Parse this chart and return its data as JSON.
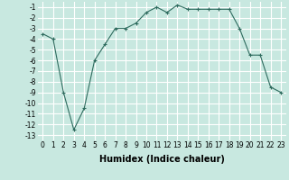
{
  "x": [
    0,
    1,
    2,
    3,
    4,
    5,
    6,
    7,
    8,
    9,
    10,
    11,
    12,
    13,
    14,
    15,
    16,
    17,
    18,
    19,
    20,
    21,
    22,
    23
  ],
  "y": [
    -3.5,
    -4.0,
    -9.0,
    -12.5,
    -10.5,
    -6.0,
    -4.5,
    -3.0,
    -3.0,
    -2.5,
    -1.5,
    -1.0,
    -1.5,
    -0.8,
    -1.2,
    -1.2,
    -1.2,
    -1.2,
    -1.2,
    -3.0,
    -5.5,
    -5.5,
    -8.5,
    -9.0
  ],
  "line_color": "#2e6b5e",
  "marker": "+",
  "marker_size": 3,
  "bg_color": "#c8e8e0",
  "grid_color": "#ffffff",
  "xlabel": "Humidex (Indice chaleur)",
  "xlim": [
    -0.5,
    23.5
  ],
  "ylim": [
    -13.5,
    -0.5
  ],
  "yticks": [
    -13,
    -12,
    -11,
    -10,
    -9,
    -8,
    -7,
    -6,
    -5,
    -4,
    -3,
    -2,
    -1
  ],
  "xticks": [
    0,
    1,
    2,
    3,
    4,
    5,
    6,
    7,
    8,
    9,
    10,
    11,
    12,
    13,
    14,
    15,
    16,
    17,
    18,
    19,
    20,
    21,
    22,
    23
  ],
  "tick_label_fontsize": 5.5,
  "xlabel_fontsize": 7.0
}
